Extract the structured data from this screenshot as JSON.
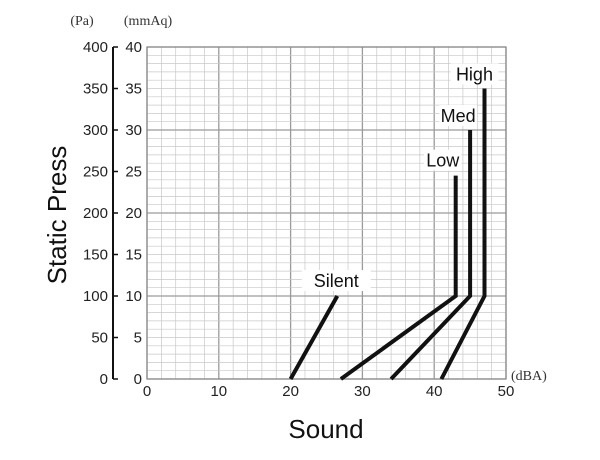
{
  "chart_data": {
    "type": "line",
    "xlabel": "Sound",
    "ylabel": "Static Press",
    "x_unit": "(dBA)",
    "y_unit_left": "(Pa)",
    "y_unit_right": "(mmAq)",
    "xlim": [
      0,
      50
    ],
    "ylim": [
      0,
      40
    ],
    "ylim_pa": [
      0,
      400
    ],
    "x_ticks": [
      0,
      10,
      20,
      30,
      40,
      50
    ],
    "y_ticks_mmaq": [
      0,
      5,
      10,
      15,
      20,
      25,
      30,
      35,
      40
    ],
    "y_ticks_pa": [
      0,
      50,
      100,
      150,
      200,
      250,
      300,
      350,
      400
    ],
    "grid": true,
    "series": [
      {
        "name": "Silent",
        "points": [
          [
            20,
            0
          ],
          [
            26.5,
            10
          ]
        ]
      },
      {
        "name": "Low",
        "points": [
          [
            27,
            0
          ],
          [
            43,
            10
          ],
          [
            43,
            24.5
          ]
        ]
      },
      {
        "name": "Med",
        "points": [
          [
            34,
            0
          ],
          [
            45,
            10
          ],
          [
            45,
            30
          ]
        ]
      },
      {
        "name": "High",
        "points": [
          [
            41,
            0
          ],
          [
            47,
            10
          ],
          [
            47,
            35
          ]
        ]
      }
    ]
  }
}
